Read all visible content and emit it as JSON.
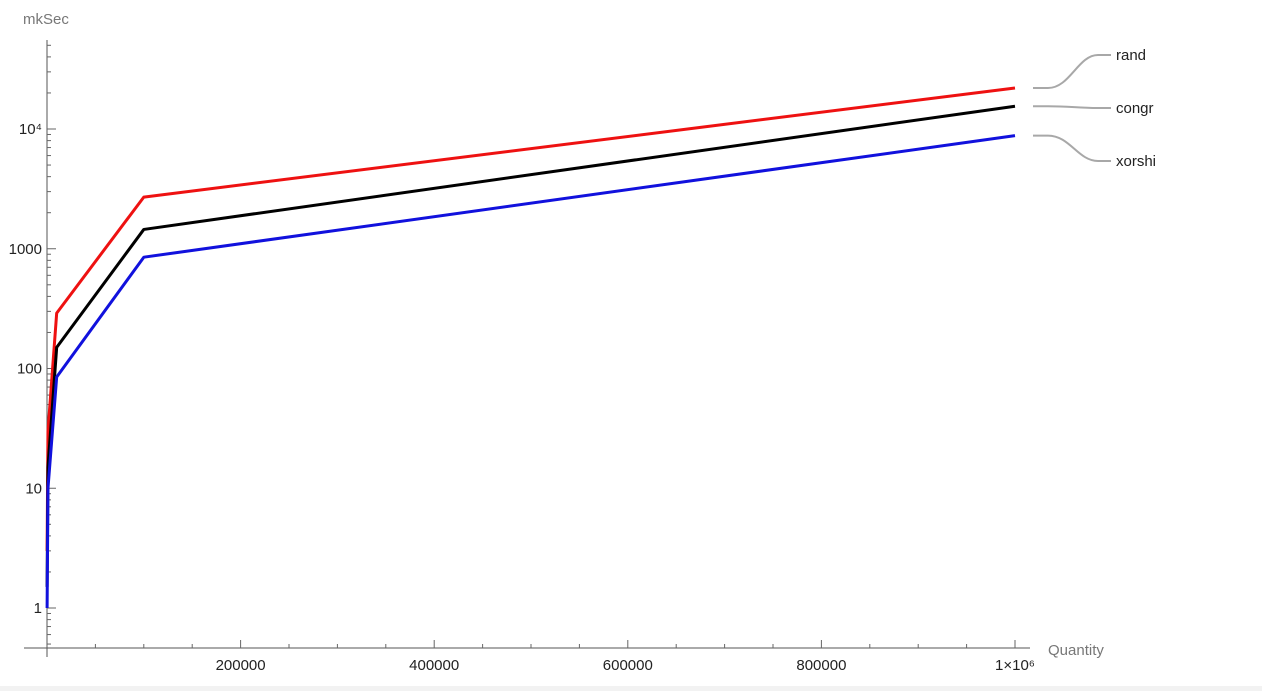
{
  "chart_data": {
    "type": "line",
    "title": "",
    "xlabel": "Quantity",
    "ylabel": "mkSec",
    "y_scale": "log",
    "grid": false,
    "legend_placement": "right, labels at line ends",
    "xlim": [
      0,
      1000000
    ],
    "ylim": [
      0.35,
      70000
    ],
    "x_ticks": [
      {
        "value": 200000,
        "label": "200000"
      },
      {
        "value": 400000,
        "label": "400000"
      },
      {
        "value": 600000,
        "label": "600000"
      },
      {
        "value": 800000,
        "label": "800000"
      },
      {
        "value": 1000000,
        "label": "1×10⁶"
      }
    ],
    "y_ticks": [
      {
        "value": 1,
        "label": "1"
      },
      {
        "value": 10,
        "label": "10"
      },
      {
        "value": 100,
        "label": "100"
      },
      {
        "value": 1000,
        "label": "1000"
      },
      {
        "value": 10000,
        "label": "10⁴"
      }
    ],
    "x": [
      100,
      1000,
      10000,
      100000,
      1000000
    ],
    "series": [
      {
        "name": "rand",
        "color": "#ee1111",
        "values": [
          3,
          30,
          290,
          2700,
          22000
        ]
      },
      {
        "name": "congr",
        "color": "#000000",
        "values": [
          1.5,
          15,
          150,
          1450,
          15500
        ]
      },
      {
        "name": "xorshi",
        "color": "#1111dd",
        "values": [
          1,
          10,
          85,
          850,
          8800
        ]
      }
    ]
  }
}
